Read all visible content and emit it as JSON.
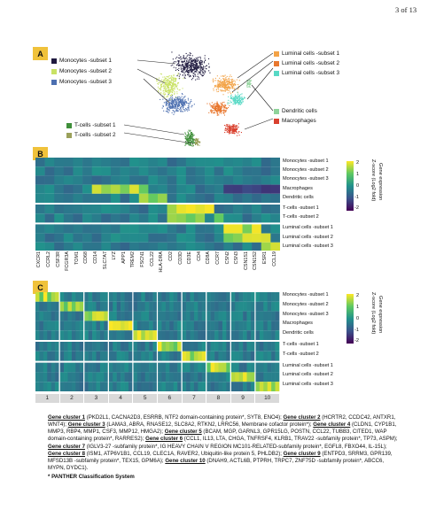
{
  "page_number": "3 of 13",
  "panel_a": {
    "label": "A",
    "legend_left": [
      {
        "text": "Monocytes -subset 1",
        "color": "#1f1a3f"
      },
      {
        "text": "Monocytes -subset 2",
        "color": "#c9e265"
      },
      {
        "text": "Monocytes -subset 3",
        "color": "#4c6fb0"
      }
    ],
    "legend_right": [
      {
        "text": "Luminal cells -subset 1",
        "color": "#f3a347"
      },
      {
        "text": "Luminal cells -subset 2",
        "color": "#e8772e"
      },
      {
        "text": "Luminal cells -subset 3",
        "color": "#57d9c5"
      }
    ],
    "legend_right_lower": [
      {
        "text": "Dendritic cells",
        "color": "#8fd39a"
      },
      {
        "text": "Macrophages",
        "color": "#d9412f"
      }
    ],
    "legend_left_lower": [
      {
        "text": "T-cells -subset 1",
        "color": "#3f8f3a"
      },
      {
        "text": "T-cells -subset 2",
        "color": "#9aa05a"
      }
    ]
  },
  "panel_b": {
    "label": "B",
    "row_labels": [
      "Monocytes -subset 1",
      "Monocytes -subset 2",
      "Monocytes -subset 3",
      "Macrophages",
      "Dendritic cells",
      "T-cells -subset 1",
      "T-cells -subset 2",
      "Luminal cells -subset 1",
      "Luminal cells -subset 2",
      "Luminal cells -subset 3"
    ],
    "genes": [
      "CXCR1",
      "CCRL2",
      "CSF3R",
      "FCGR3A",
      "TOM1",
      "CD68",
      "CD14",
      "SLC7A7",
      "LYZ",
      "APP1",
      "TREM2",
      "FSCN1",
      "CCL22",
      "HLA-DRA",
      "CD2",
      "CD3D",
      "CD3E",
      "CD4",
      "CD8A",
      "CCR7",
      "CSN2",
      "CSN3",
      "CSN1S1",
      "CSN1S2",
      "ESR1",
      "CCL19"
    ],
    "colorbar": {
      "ticks": [
        "2",
        "1",
        "0",
        "-1",
        "-2"
      ],
      "title_1": "Z-score (Log2 fold)",
      "title_2": "Gene expression"
    }
  },
  "panel_c": {
    "label": "C",
    "row_labels": [
      "Monocytes -subset 1",
      "Monocytes -subset 2",
      "Monocytes -subset 3",
      "Macrophages",
      "Dendritic cells",
      "T-cells -subset 1",
      "T-cells -subset 2",
      "Luminal cells -subset 1",
      "Luminal cells -subset 2",
      "Luminal cells -subset 3"
    ],
    "cluster_numbers": [
      "1",
      "2",
      "3",
      "4",
      "5",
      "6",
      "7",
      "8",
      "9",
      "10"
    ],
    "colorbar": {
      "ticks": [
        "2",
        "1",
        "0",
        "-1",
        "-2"
      ],
      "title_1": "Z-score (Log2 fold)",
      "title_2": "Gene expression"
    }
  },
  "caption": {
    "clusters": [
      {
        "title": "Gene cluster 1",
        "genes": " (PKD2L1, CACNA2D3, ESRRB, NTF2 domain-containing protein*, SYT8, ENO4); "
      },
      {
        "title": "Gene cluster 2",
        "genes": " (HCRTR2, CCDC42, ANTXR1, WNT4); "
      },
      {
        "title": "Gene cluster 3",
        "genes": " (LAMA3, ABRA, RNASE12, SLC8A2, RTKN2, LRRC56, Membrane cofactor protein*); "
      },
      {
        "title": "Gene cluster 4",
        "genes": " (CLDN1, CYP1B1, MMP3, RBP4, MMP1, CSF3, MMP12, HMGA2); "
      },
      {
        "title": "Gene cluster 5",
        "genes": " (BCAM, MGP, GARNL3, GPR15LG, POSTN, CCL22, TUBB3, CITED1, WAP domain-containing protein*, RARRES2); "
      },
      {
        "title": "Gene cluster 6",
        "genes": " (CCL1, IL13, LTA, CHGA, TNFRSF4, KLRB1, TRAV22 -subfamily protein*, TP73, ASPM); "
      },
      {
        "title": "Gene cluster 7",
        "genes": " (IGLV3-27 -subfamily protein*, IG HEAVY CHAIN V REGION MC101-RELATED-subfamily protein*, EGFL8, FBXO44, IL-15L); "
      },
      {
        "title": "Gene cluster 8",
        "genes": " (ISM1, ATP6V1B1, CCL19, CLEC1A, RAVER2, Ubiquitin-like protein 5, PHLDB2); "
      },
      {
        "title": "Gene cluster 9",
        "genes": " (ENTPD3, SRRM3, GPR139, MFSD13B -subfamily protein*, TEX15, GPM6A); "
      },
      {
        "title": "Gene cluster 10",
        "genes": " (DNAH9, ACTL6B, PTPRH, TRPC7, ZNF75D -subfamily protein*, ABCC6, MYPN, DYDC1)."
      }
    ],
    "footnote": "* PANTHER Classification System"
  }
}
